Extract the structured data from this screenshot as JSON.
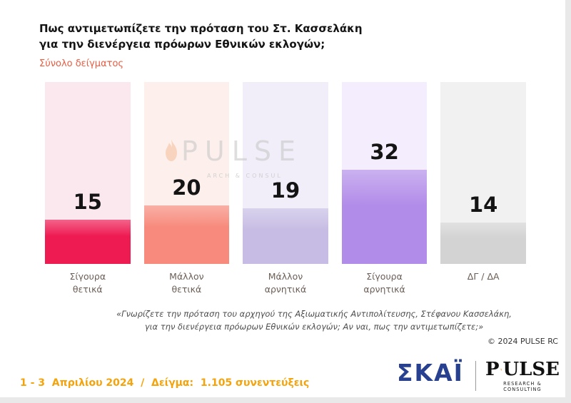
{
  "title": "Πως αντιμετωπίζετε την πρόταση του Στ. Κασσελάκη\nγια την διενέργεια πρόωρων Εθνικών εκλογών;",
  "subtitle": "Σύνολο δείγματος",
  "chart_data": {
    "type": "bar",
    "categories": [
      "Σίγουρα\nθετικά",
      "Μάλλον\nθετικά",
      "Μάλλον\nαρνητικά",
      "Σίγουρα\nαρνητικά",
      "ΔΓ / ΔΑ"
    ],
    "values": [
      15,
      20,
      19,
      32,
      14
    ],
    "bar_colors": [
      "#ee1a52",
      "#f78a7c",
      "#c7bde4",
      "#b28ce9",
      "#d3d3d3"
    ],
    "track_colors": [
      "#fbe8ee",
      "#fdf0ec",
      "#f1eef9",
      "#f4edfd",
      "#f1f1f1"
    ],
    "title": "Πως αντιμετωπίζετε την πρόταση του Στ. Κασσελάκη για την διενέργεια πρόωρων Εθνικών εκλογών;",
    "xlabel": "",
    "ylabel": "",
    "ylim": [
      0,
      62
    ],
    "grid": false,
    "legend": "none",
    "value_labels": "above-bars"
  },
  "watermark": {
    "text": "PULSE",
    "subtext": "ARCH & CONSUL"
  },
  "footnote": "«Γνωρίζετε την πρόταση του αρχηγού της Αξιωματικής Αντιπολίτευσης, Στέφανου Κασσελάκη,\nγια την διενέργεια πρόωρων Εθνικών εκλογών; Αν ναι, πως την αντιμετωπίζετε;»",
  "copyright": "© 2024 PULSE RC",
  "survey_info": "1 - 3  Απριλίου 2024  /  Δείγμα:  1.105 συνεντεύξεις",
  "logos": {
    "skai": "ΣΚΑΪ",
    "pulse_p": "P",
    "pulse_rest": "ULSE",
    "pulse_sub": "RESEARCH & CONSULTING"
  },
  "colors": {
    "subtitle": "#e85c41",
    "survey_info": "#f5a30a",
    "skai_blue": "#27408f",
    "pulse_orange": "#f07d00"
  }
}
